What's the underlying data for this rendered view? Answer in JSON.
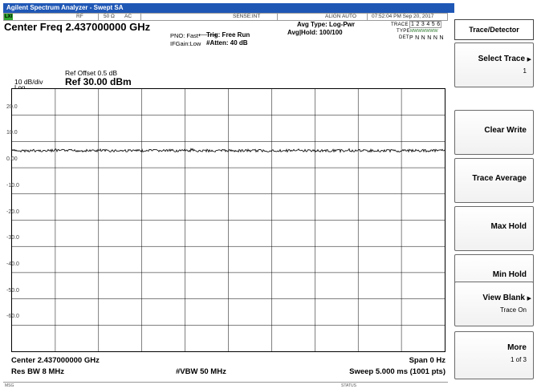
{
  "window": {
    "title": "Agilent Spectrum Analyzer - Swept SA"
  },
  "status_bar": {
    "lxi": "LXI",
    "rf": "RF",
    "impedance": "50 Ω",
    "coupling": "AC",
    "sense": "SENSE:INT",
    "align": "ALIGN AUTO",
    "datetime": "07:52:04 PM Sep 20, 2017"
  },
  "header": {
    "center_freq": "Center Freq 2.437000000 GHz",
    "pno": "PNO: Fast",
    "ifgain": "IFGain:Low",
    "trig": "Trig: Free Run",
    "atten": "#Atten: 40 dB",
    "avg_type": "Avg Type: Log-Pwr",
    "avg_hold": "Avg|Hold: 100/100",
    "trace_label": "TRACE",
    "trace_nums": "1 2 3 4 5 6",
    "type_label": "TYPE",
    "type_vals": "MWWWWWW",
    "det_label": "DET",
    "det_vals": "P N N N N N"
  },
  "plot": {
    "ref_offset": "Ref Offset 0.5 dB",
    "scale": "10 dB/div",
    "ref_level": "Ref 30.00 dBm",
    "scale_type": "Log",
    "y_ticks": [
      "20.0",
      "10.0",
      "0.00",
      "-10.0",
      "-20.0",
      "-30.0",
      "-40.0",
      "-50.0",
      "-60.0"
    ],
    "trace_level_dbm": 6.5
  },
  "footer": {
    "center": "Center 2.437000000 GHz",
    "span": "Span 0 Hz",
    "res_bw": "Res BW 8 MHz",
    "vbw": "#VBW 50 MHz",
    "sweep": "Sweep  5.000 ms (1001 pts)"
  },
  "message_bar": {
    "msg": "MSG",
    "status": "STATUS"
  },
  "softkeys": {
    "title": "Trace/Detector",
    "select_trace": "Select Trace",
    "select_trace_value": "1",
    "clear_write": "Clear Write",
    "trace_average": "Trace Average",
    "max_hold": "Max Hold",
    "min_hold": "Min Hold",
    "view_blank": "View Blank",
    "view_blank_value": "Trace On",
    "more": "More",
    "more_page": "1 of 3"
  }
}
